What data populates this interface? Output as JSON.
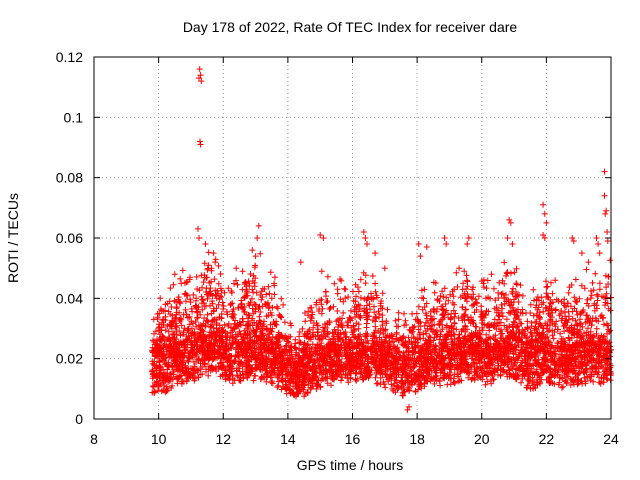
{
  "chart_data": {
    "type": "scatter",
    "title": "Day 178 of 2022, Rate Of TEC Index for receiver dare",
    "xlabel": "GPS time / hours",
    "ylabel": "ROTI / TECUs",
    "xlim": [
      8,
      24
    ],
    "ylim": [
      0,
      0.12
    ],
    "x_ticks": [
      "8",
      "10",
      "12",
      "14",
      "16",
      "18",
      "20",
      "22",
      "24"
    ],
    "y_ticks": [
      "0",
      "0.02",
      "0.04",
      "0.06",
      "0.08",
      "0.1",
      "0.12"
    ],
    "grid": true,
    "marker": "+",
    "color": "#ff0000",
    "data_start_hour": 9.8,
    "data_end_hour": 24,
    "envelope": [
      {
        "x": 9.8,
        "base": 0.015,
        "spread": 0.012
      },
      {
        "x": 10.3,
        "base": 0.016,
        "spread": 0.022
      },
      {
        "x": 10.6,
        "base": 0.018,
        "spread": 0.024
      },
      {
        "x": 11.3,
        "base": 0.02,
        "spread": 0.026
      },
      {
        "x": 11.7,
        "base": 0.022,
        "spread": 0.03
      },
      {
        "x": 12.2,
        "base": 0.018,
        "spread": 0.022
      },
      {
        "x": 12.8,
        "base": 0.019,
        "spread": 0.026
      },
      {
        "x": 13.2,
        "base": 0.02,
        "spread": 0.03
      },
      {
        "x": 13.8,
        "base": 0.016,
        "spread": 0.02
      },
      {
        "x": 14.2,
        "base": 0.013,
        "spread": 0.01
      },
      {
        "x": 14.8,
        "base": 0.016,
        "spread": 0.02
      },
      {
        "x": 15.2,
        "base": 0.018,
        "spread": 0.024
      },
      {
        "x": 16.0,
        "base": 0.019,
        "spread": 0.022
      },
      {
        "x": 16.5,
        "base": 0.02,
        "spread": 0.026
      },
      {
        "x": 17.0,
        "base": 0.017,
        "spread": 0.018
      },
      {
        "x": 17.7,
        "base": 0.014,
        "spread": 0.014
      },
      {
        "x": 18.3,
        "base": 0.018,
        "spread": 0.026
      },
      {
        "x": 19.0,
        "base": 0.018,
        "spread": 0.022
      },
      {
        "x": 19.5,
        "base": 0.02,
        "spread": 0.026
      },
      {
        "x": 20.2,
        "base": 0.018,
        "spread": 0.022
      },
      {
        "x": 20.9,
        "base": 0.021,
        "spread": 0.03
      },
      {
        "x": 21.5,
        "base": 0.016,
        "spread": 0.018
      },
      {
        "x": 22.0,
        "base": 0.019,
        "spread": 0.026
      },
      {
        "x": 22.5,
        "base": 0.017,
        "spread": 0.02
      },
      {
        "x": 23.0,
        "base": 0.018,
        "spread": 0.026
      },
      {
        "x": 23.5,
        "base": 0.019,
        "spread": 0.026
      },
      {
        "x": 24.0,
        "base": 0.018,
        "spread": 0.03
      }
    ],
    "outliers": [
      {
        "x": 11.27,
        "y": 0.116
      },
      {
        "x": 11.3,
        "y": 0.114
      },
      {
        "x": 11.25,
        "y": 0.113
      },
      {
        "x": 11.32,
        "y": 0.112
      },
      {
        "x": 11.28,
        "y": 0.092
      },
      {
        "x": 11.3,
        "y": 0.091
      },
      {
        "x": 11.22,
        "y": 0.063
      },
      {
        "x": 11.25,
        "y": 0.06
      },
      {
        "x": 11.45,
        "y": 0.058
      },
      {
        "x": 11.7,
        "y": 0.055
      },
      {
        "x": 11.75,
        "y": 0.052
      },
      {
        "x": 13.1,
        "y": 0.064
      },
      {
        "x": 13.05,
        "y": 0.06
      },
      {
        "x": 12.9,
        "y": 0.056
      },
      {
        "x": 13.0,
        "y": 0.054
      },
      {
        "x": 14.4,
        "y": 0.052
      },
      {
        "x": 15.0,
        "y": 0.061
      },
      {
        "x": 15.1,
        "y": 0.06
      },
      {
        "x": 15.05,
        "y": 0.049
      },
      {
        "x": 16.35,
        "y": 0.062
      },
      {
        "x": 16.4,
        "y": 0.06
      },
      {
        "x": 16.45,
        "y": 0.058
      },
      {
        "x": 16.7,
        "y": 0.055
      },
      {
        "x": 17.0,
        "y": 0.05
      },
      {
        "x": 18.05,
        "y": 0.058
      },
      {
        "x": 18.3,
        "y": 0.057
      },
      {
        "x": 18.1,
        "y": 0.054
      },
      {
        "x": 18.85,
        "y": 0.06
      },
      {
        "x": 18.9,
        "y": 0.058
      },
      {
        "x": 19.6,
        "y": 0.06
      },
      {
        "x": 19.55,
        "y": 0.058
      },
      {
        "x": 19.3,
        "y": 0.05
      },
      {
        "x": 20.3,
        "y": 0.048
      },
      {
        "x": 20.85,
        "y": 0.066
      },
      {
        "x": 20.9,
        "y": 0.065
      },
      {
        "x": 20.8,
        "y": 0.06
      },
      {
        "x": 20.95,
        "y": 0.058
      },
      {
        "x": 21.9,
        "y": 0.071
      },
      {
        "x": 21.95,
        "y": 0.068
      },
      {
        "x": 22.0,
        "y": 0.065
      },
      {
        "x": 21.9,
        "y": 0.061
      },
      {
        "x": 21.95,
        "y": 0.06
      },
      {
        "x": 22.8,
        "y": 0.06
      },
      {
        "x": 22.85,
        "y": 0.059
      },
      {
        "x": 23.1,
        "y": 0.055
      },
      {
        "x": 23.3,
        "y": 0.052
      },
      {
        "x": 23.55,
        "y": 0.06
      },
      {
        "x": 23.6,
        "y": 0.058
      },
      {
        "x": 23.65,
        "y": 0.055
      },
      {
        "x": 23.8,
        "y": 0.082
      },
      {
        "x": 23.8,
        "y": 0.074
      },
      {
        "x": 23.85,
        "y": 0.069
      },
      {
        "x": 23.82,
        "y": 0.068
      },
      {
        "x": 23.88,
        "y": 0.062
      },
      {
        "x": 23.9,
        "y": 0.059
      },
      {
        "x": 17.7,
        "y": 0.003
      },
      {
        "x": 17.75,
        "y": 0.004
      },
      {
        "x": 10.05,
        "y": 0.04
      },
      {
        "x": 9.85,
        "y": 0.033
      },
      {
        "x": 10.5,
        "y": 0.048
      },
      {
        "x": 12.4,
        "y": 0.05
      },
      {
        "x": 12.6,
        "y": 0.049
      },
      {
        "x": 13.6,
        "y": 0.047
      }
    ]
  }
}
